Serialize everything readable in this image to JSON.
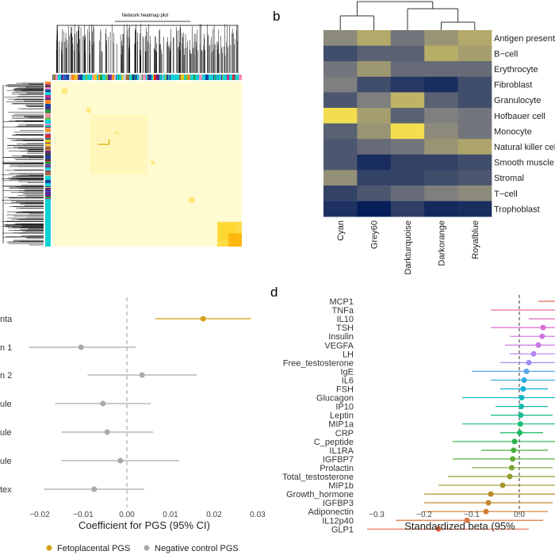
{
  "panel_labels": {
    "b": "b",
    "d": "d"
  },
  "chart_data": [
    {
      "type": "heatmap",
      "panel": "a",
      "title": "Network heatmap plot",
      "module_colors": [
        "#e52720",
        "#2c5fb8",
        "#e8c51c",
        "#1f9e3c",
        "#7b3fb0",
        "#ff8a1e",
        "#1ab2c8",
        "#b6338a",
        "#7cc242",
        "#404040",
        "#f08fb6",
        "#1844a0",
        "#9a6b3c",
        "#13d0d4",
        "#c9c9c9",
        "#5b2a86"
      ]
    },
    {
      "type": "heatmap",
      "panel": "b",
      "columns": [
        "Cyan",
        "Grey60",
        "Darkturquoise",
        "Darkorange",
        "Royalblue"
      ],
      "rows": [
        "Antigen presenti",
        "B−cell",
        "Erythrocyte",
        "Fibroblast",
        "Granulocyte",
        "Hofbauer cell",
        "Monocyte",
        "Natural killer cel",
        "Smooth muscle",
        "Stromal",
        "T−cell",
        "Trophoblast"
      ],
      "values": [
        [
          0.55,
          0.7,
          0.45,
          0.6,
          0.7
        ],
        [
          0.25,
          0.35,
          0.35,
          0.72,
          0.65
        ],
        [
          0.45,
          0.62,
          0.4,
          0.4,
          0.4
        ],
        [
          0.5,
          0.25,
          0.15,
          0.1,
          0.25
        ],
        [
          0.3,
          0.5,
          0.75,
          0.35,
          0.25
        ],
        [
          0.95,
          0.65,
          0.35,
          0.5,
          0.45
        ],
        [
          0.35,
          0.6,
          0.95,
          0.55,
          0.45
        ],
        [
          0.3,
          0.4,
          0.45,
          0.6,
          0.68
        ],
        [
          0.3,
          0.1,
          0.2,
          0.2,
          0.25
        ],
        [
          0.58,
          0.2,
          0.2,
          0.25,
          0.3
        ],
        [
          0.2,
          0.3,
          0.4,
          0.5,
          0.55
        ],
        [
          0.12,
          0.02,
          0.18,
          0.08,
          0.1
        ]
      ],
      "color_low": "#001a57",
      "color_mid": "#7f7f7f",
      "color_high": "#ffe94a"
    },
    {
      "type": "scatter",
      "panel": "c",
      "categories": [
        "nta",
        "n 1",
        "n 2",
        "ule",
        "ule",
        "ule",
        "tex"
      ],
      "estimates": [
        0.0175,
        -0.0105,
        0.0035,
        -0.0055,
        -0.0045,
        -0.0015,
        -0.0075
      ],
      "ci_low": [
        0.0065,
        -0.0225,
        -0.009,
        -0.0165,
        -0.015,
        -0.015,
        -0.019
      ],
      "ci_high": [
        0.0285,
        0.002,
        0.016,
        0.0055,
        0.006,
        0.012,
        0.004
      ],
      "groups": [
        "Fetoplacental PGS",
        "Negative control PGS",
        "Negative control PGS",
        "Negative control PGS",
        "Negative control PGS",
        "Negative control PGS",
        "Negative control PGS"
      ],
      "xlabel": "Coefficient for PGS (95% CI)",
      "xlim": [
        -0.025,
        0.031
      ],
      "xticks": [
        -0.02,
        -0.01,
        0.0,
        0.01,
        0.02,
        0.03
      ],
      "xtick_labels": [
        "−0.02",
        "−0.01",
        "0.00",
        "0.01",
        "0.02",
        "0.03"
      ],
      "reference_line": 0,
      "legend": [
        {
          "name": "Fetoplacental PGS",
          "color": "#d4a017"
        },
        {
          "name": "Negative control PGS",
          "color": "#a9a9a9"
        }
      ]
    },
    {
      "type": "scatter",
      "panel": "d",
      "categories": [
        "MCP1",
        "TNFa",
        "IL10",
        "TSH",
        "Insulin",
        "VEGFA",
        "LH",
        "Free_testosterone",
        "IgE",
        "IL6",
        "FSH",
        "Glucagon",
        "IP10",
        "Leptin",
        "MIP1a",
        "CRP",
        "C_peptide",
        "IL1RA",
        "IGFBP7",
        "Prolactin",
        "Total_testosterone",
        "MIP1b",
        "Growth_hormone",
        "IGFBP3",
        "Adiponectin",
        "IL12p40",
        "GLP1"
      ],
      "estimates": [
        0.14,
        0.12,
        0.1,
        0.05,
        0.048,
        0.04,
        0.03,
        0.02,
        0.015,
        0.01,
        0.008,
        0.005,
        0.004,
        0.003,
        0.002,
        0.001,
        -0.01,
        -0.012,
        -0.014,
        -0.016,
        -0.02,
        -0.035,
        -0.06,
        -0.065,
        -0.07,
        -0.11,
        -0.17
      ],
      "ci_low": [
        0.04,
        -0.06,
        0.02,
        -0.06,
        -0.02,
        -0.03,
        -0.02,
        -0.04,
        -0.1,
        -0.06,
        -0.04,
        -0.12,
        -0.05,
        -0.06,
        -0.12,
        -0.04,
        -0.14,
        -0.08,
        -0.14,
        -0.1,
        -0.15,
        -0.17,
        -0.2,
        -0.2,
        -0.2,
        -0.26,
        -0.32
      ],
      "ci_high": [
        0.24,
        0.3,
        0.18,
        0.16,
        0.12,
        0.12,
        0.08,
        0.08,
        0.13,
        0.08,
        0.06,
        0.13,
        0.06,
        0.07,
        0.12,
        0.05,
        0.12,
        0.06,
        0.11,
        0.07,
        0.11,
        0.1,
        0.08,
        0.07,
        0.06,
        0.05,
        0.02
      ],
      "colors": [
        "#e8635a",
        "#e8607e",
        "#e26ac0",
        "#d86ed6",
        "#cf72e0",
        "#c878e8",
        "#b084f0",
        "#9a92f2",
        "#5fa2ee",
        "#29abe2",
        "#10b0d6",
        "#10b6c0",
        "#12b9a8",
        "#16bb90",
        "#18bb78",
        "#1aba60",
        "#2bb24a",
        "#46ae3c",
        "#5fa936",
        "#7aa332",
        "#929c2e",
        "#a6952c",
        "#b88d2c",
        "#c7852e",
        "#d47c34",
        "#dd743e",
        "#e86b4e"
      ],
      "xlabel": "Standardized beta (95%",
      "xlim": [
        -0.33,
        0.07
      ],
      "xticks": [
        -0.3,
        -0.2,
        -0.1,
        0.0
      ],
      "xtick_labels": [
        "−0.3",
        "−0.2",
        "−0.1",
        "0.0"
      ],
      "reference_line": 0
    }
  ]
}
